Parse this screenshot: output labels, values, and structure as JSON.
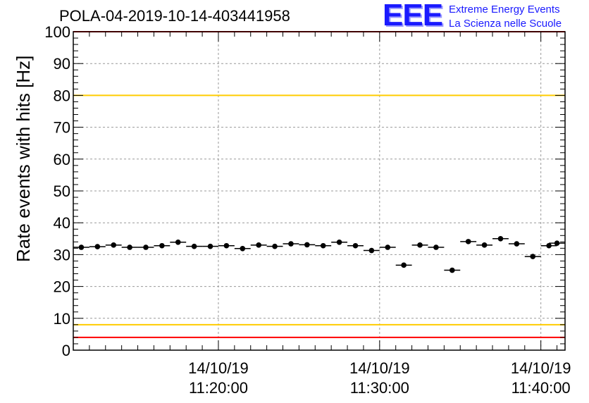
{
  "header": {
    "title": "POLA-04-2019-10-14-403441958",
    "logo": "EEE",
    "logo_line1": "Extreme Energy Events",
    "logo_line2": "La Scienza nelle Scuole"
  },
  "colors": {
    "red_line": "#ff0000",
    "yellow_line": "#ffcc00",
    "logo_blue": "#1a1aff",
    "grid": "#999999",
    "marker": "#000000"
  },
  "chart_data": {
    "type": "scatter",
    "title": "POLA-04-2019-10-14-403441958",
    "ylabel": "Rate events with hits [Hz]",
    "xlabel": "",
    "ylim": [
      0,
      100
    ],
    "xlim": [
      "14/10/19 11:11:00",
      "14/10/19 11:41:30"
    ],
    "yticks": [
      "0",
      "10",
      "20",
      "30",
      "40",
      "50",
      "60",
      "70",
      "80",
      "90",
      "100"
    ],
    "xticks": [
      {
        "date": "14/10/19",
        "time": "11:20:00"
      },
      {
        "date": "14/10/19",
        "time": "11:30:00"
      },
      {
        "date": "14/10/19",
        "time": "11:40:00"
      }
    ],
    "grid": true,
    "reference_lines": [
      {
        "value": 100,
        "color": "red"
      },
      {
        "value": 80,
        "color": "yellow"
      },
      {
        "value": 8,
        "color": "yellow"
      },
      {
        "value": 4,
        "color": "red"
      }
    ],
    "bin_width_s": 60,
    "series": [
      {
        "x": [
          "11:11:30",
          "11:12:30",
          "11:13:30",
          "11:14:30",
          "11:15:30",
          "11:16:30",
          "11:17:30",
          "11:18:30",
          "11:19:30",
          "11:20:30",
          "11:21:30",
          "11:22:30",
          "11:23:30",
          "11:24:30",
          "11:25:30",
          "11:26:30",
          "11:27:30",
          "11:28:30",
          "11:29:30",
          "11:30:30",
          "11:31:30",
          "11:32:30",
          "11:33:30",
          "11:34:30",
          "11:35:30",
          "11:36:30",
          "11:37:30",
          "11:38:30",
          "11:39:30",
          "11:40:30",
          "11:41:00"
        ],
        "y": [
          32.3,
          32.5,
          33.0,
          32.3,
          32.3,
          32.8,
          33.9,
          32.6,
          32.6,
          32.8,
          31.9,
          33.0,
          32.6,
          33.4,
          33.1,
          32.8,
          33.9,
          32.8,
          31.3,
          32.3,
          26.7,
          33.0,
          32.3,
          25.1,
          34.1,
          33.0,
          35.0,
          33.4,
          29.4,
          32.8,
          33.6
        ]
      }
    ]
  }
}
